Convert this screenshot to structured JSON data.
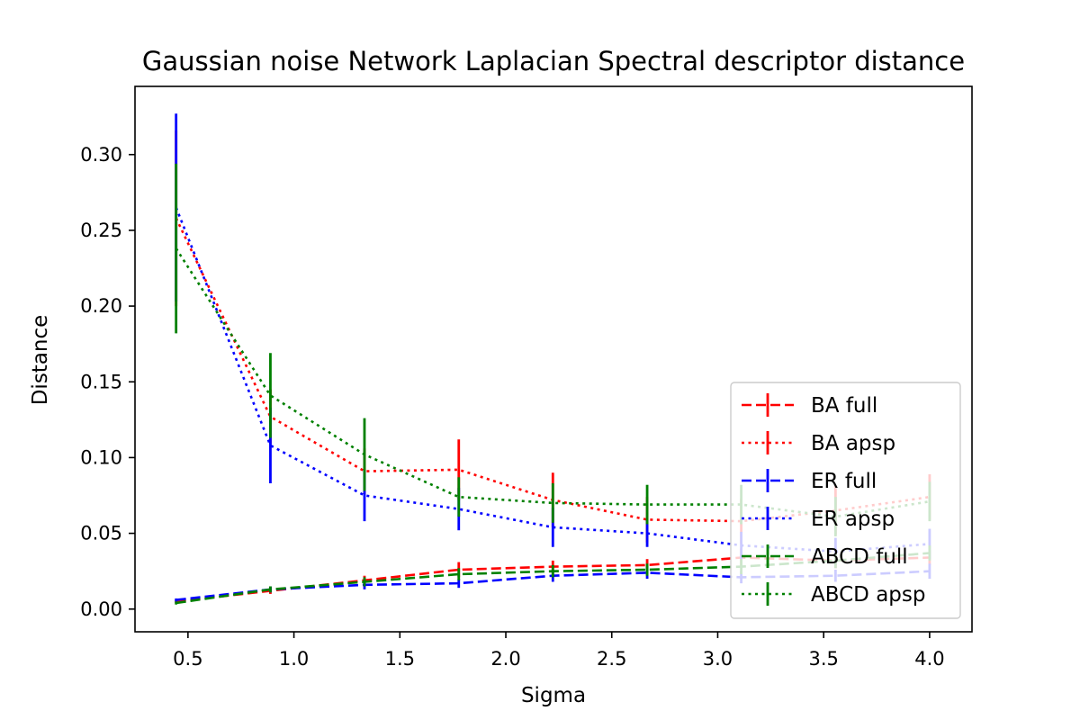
{
  "chart_data": {
    "type": "line",
    "title": "Gaussian noise Network Laplacian Spectral descriptor distance",
    "xlabel": "Sigma",
    "ylabel": "Distance",
    "xlim": [
      0.25,
      4.2
    ],
    "ylim": [
      -0.015,
      0.345
    ],
    "xticks": [
      0.5,
      1.0,
      1.5,
      2.0,
      2.5,
      3.0,
      3.5,
      4.0
    ],
    "xtick_labels": [
      "0.5",
      "1.0",
      "1.5",
      "2.0",
      "2.5",
      "3.0",
      "3.5",
      "4.0"
    ],
    "yticks": [
      0.0,
      0.05,
      0.1,
      0.15,
      0.2,
      0.25,
      0.3
    ],
    "ytick_labels": [
      "0.00",
      "0.05",
      "0.10",
      "0.15",
      "0.20",
      "0.25",
      "0.30"
    ],
    "grid": false,
    "legend_position": "lower right",
    "x": [
      0.444,
      0.889,
      1.333,
      1.778,
      2.222,
      2.667,
      3.111,
      3.556,
      4.0
    ],
    "series": [
      {
        "name": "BA full",
        "color": "#ff0000",
        "dash": "dashed",
        "values": [
          0.005,
          0.012,
          0.019,
          0.026,
          0.028,
          0.029,
          0.034,
          0.032,
          0.034
        ],
        "errors": [
          0.001,
          0.002,
          0.003,
          0.005,
          0.004,
          0.004,
          0.006,
          0.005,
          0.005
        ]
      },
      {
        "name": "BA apsp",
        "color": "#ff0000",
        "dash": "dotted",
        "values": [
          0.258,
          0.127,
          0.091,
          0.092,
          0.072,
          0.059,
          0.058,
          0.065,
          0.074
        ],
        "errors": [
          0.058,
          0.018,
          0.015,
          0.02,
          0.018,
          0.015,
          0.015,
          0.016,
          0.015
        ]
      },
      {
        "name": "ER full",
        "color": "#0000ff",
        "dash": "dashed",
        "values": [
          0.006,
          0.013,
          0.016,
          0.017,
          0.022,
          0.024,
          0.021,
          0.022,
          0.025
        ],
        "errors": [
          0.001,
          0.002,
          0.003,
          0.003,
          0.004,
          0.004,
          0.004,
          0.004,
          0.005
        ]
      },
      {
        "name": "ER apsp",
        "color": "#0000ff",
        "dash": "dotted",
        "values": [
          0.265,
          0.108,
          0.075,
          0.066,
          0.054,
          0.05,
          0.042,
          0.038,
          0.043
        ],
        "errors": [
          0.062,
          0.025,
          0.017,
          0.014,
          0.013,
          0.009,
          0.009,
          0.009,
          0.01
        ]
      },
      {
        "name": "ABCD full",
        "color": "#008000",
        "dash": "dashed",
        "values": [
          0.004,
          0.013,
          0.018,
          0.023,
          0.025,
          0.026,
          0.028,
          0.032,
          0.037
        ],
        "errors": [
          0.001,
          0.002,
          0.003,
          0.004,
          0.004,
          0.004,
          0.005,
          0.005,
          0.005
        ]
      },
      {
        "name": "ABCD apsp",
        "color": "#008000",
        "dash": "dotted",
        "values": [
          0.238,
          0.141,
          0.102,
          0.074,
          0.07,
          0.069,
          0.069,
          0.061,
          0.071
        ],
        "errors": [
          0.056,
          0.028,
          0.024,
          0.013,
          0.013,
          0.013,
          0.013,
          0.013,
          0.013
        ]
      }
    ]
  }
}
